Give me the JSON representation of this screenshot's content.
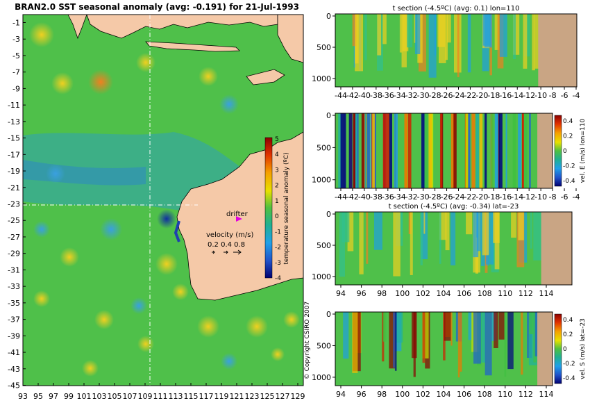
{
  "main_title": "BRAN2.0 SST seasonal anomaly (avg: -0.191) for 21-Jul-1993",
  "copyright": "© Copyright CSIRO 2007",
  "map": {
    "y_ticks": [
      "-1",
      "-3",
      "-5",
      "-7",
      "-9",
      "-11",
      "-13",
      "-15",
      "-17",
      "-19",
      "-21",
      "-23",
      "-25",
      "-27",
      "-29",
      "-31",
      "-33",
      "-35",
      "-37",
      "-39",
      "-41",
      "-43",
      "-45"
    ],
    "x_ticks": [
      "93",
      "95",
      "97",
      "99",
      "101",
      "103",
      "105",
      "107",
      "109",
      "111",
      "113",
      "115",
      "117",
      "119",
      "121",
      "123",
      "125",
      "127",
      "129"
    ],
    "colorbar_label": "temperature seasonal anomaly (ºC)",
    "colorbar_ticks": [
      "5",
      "4",
      "3",
      "2",
      "1",
      "0",
      "-1",
      "-2",
      "-3",
      "-4"
    ],
    "drifter_label": "drifter",
    "velocity_label": "velocity (m/s)",
    "velocity_values": "0.2 0.4 0.8",
    "colors": {
      "ocean": "#4fc04a",
      "land": "#f5c9a8",
      "drifter": "#e000e0",
      "crosshair": "#ffffff"
    }
  },
  "panels": [
    {
      "title": "t section (-4.5ºC) (avg: 0.1) lon=110",
      "y_ticks": [
        "0",
        "500",
        "1000"
      ],
      "x_ticks": [
        "-44",
        "-42",
        "-40",
        "-38",
        "-36",
        "-34",
        "-32",
        "-30",
        "-28",
        "-26",
        "-24",
        "-22",
        "-20",
        "-18",
        "-16",
        "-14",
        "-12",
        "-10",
        "-8",
        "-6",
        "-4"
      ],
      "colorbar": null
    },
    {
      "title": "",
      "y_ticks": [
        "0",
        "500",
        "1000"
      ],
      "x_ticks": [
        "-44",
        "-42",
        "-40",
        "-38",
        "-36",
        "-34",
        "-32",
        "-30",
        "-28",
        "-26",
        "-24",
        "-22",
        "-20",
        "-18",
        "-16",
        "-14",
        "-12",
        "-10",
        "-8",
        "-6",
        "-4"
      ],
      "colorbar": {
        "label": "vel. E (m/s) lon=110",
        "ticks": [
          "0.4",
          "0.2",
          "0",
          "-0.2",
          "-0.4"
        ]
      }
    },
    {
      "title": "t section (-4.5ºC) (avg: -0.34) lat=-23",
      "y_ticks": [
        "0",
        "500",
        "1000"
      ],
      "x_ticks": [
        "94",
        "96",
        "98",
        "100",
        "102",
        "104",
        "106",
        "108",
        "110",
        "112",
        "114"
      ],
      "colorbar": null
    },
    {
      "title": "",
      "y_ticks": [
        "0",
        "500",
        "1000"
      ],
      "x_ticks": [
        "94",
        "96",
        "98",
        "100",
        "102",
        "104",
        "106",
        "108",
        "110",
        "112",
        "114"
      ],
      "colorbar": {
        "label": "vel. S (m/s) lat=-23",
        "ticks": [
          "0.4",
          "0.2",
          "0",
          "-0.2",
          "-0.4"
        ]
      }
    }
  ],
  "colorbar_colors": [
    "#8b0000",
    "#d02000",
    "#f07800",
    "#f0c000",
    "#c8e000",
    "#40c040",
    "#20b0a0",
    "#20a0e0",
    "#2060d0",
    "#000080"
  ]
}
